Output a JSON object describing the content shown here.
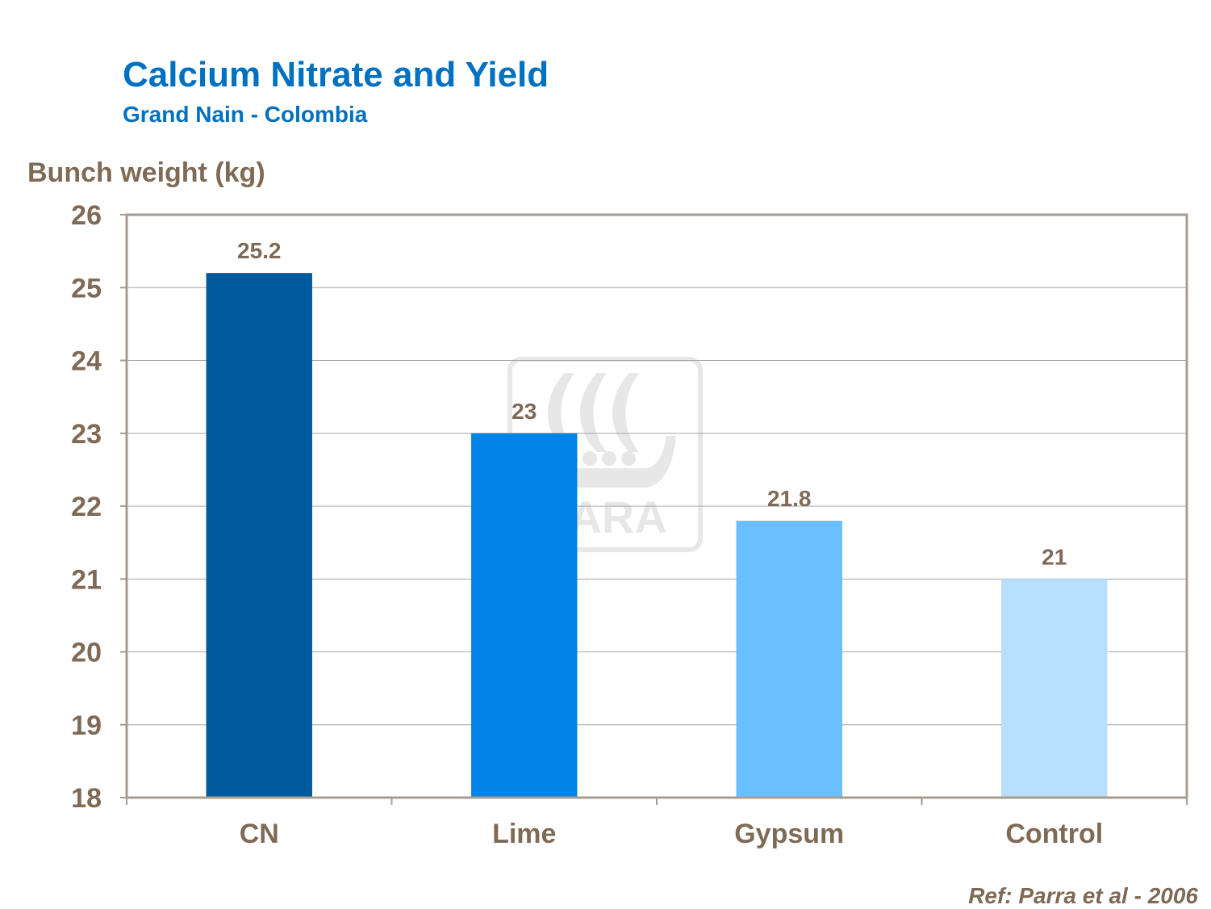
{
  "header": {
    "title": "Calcium Nitrate and Yield",
    "subtitle": "Grand Nain - Colombia"
  },
  "reference": "Ref: Parra et al - 2006",
  "watermark": {
    "text": "YARA",
    "icon": "yara-viking-ship-logo"
  },
  "colors": {
    "title": "#0070C0",
    "text": "#7F6A56",
    "axis": "#A69C91",
    "grid": "#A6A6A6",
    "bar_colors": [
      "#00599C",
      "#0082E6",
      "#69BFFF",
      "#B8DFFF"
    ],
    "watermark": "#7F7F7F"
  },
  "chart_data": {
    "type": "bar",
    "title": "Calcium Nitrate and Yield",
    "subtitle": "Grand Nain - Colombia",
    "xlabel": "",
    "ylabel": "Bunch weight (kg)",
    "categories": [
      "CN",
      "Lime",
      "Gypsum",
      "Control"
    ],
    "values": [
      25.2,
      23,
      21.8,
      21
    ],
    "data_labels": [
      "25.2",
      "23",
      "21.8",
      "21"
    ],
    "ylim": [
      18,
      26
    ],
    "yticks": [
      18,
      19,
      20,
      21,
      22,
      23,
      24,
      25,
      26
    ],
    "grid": true,
    "legend": "none"
  }
}
